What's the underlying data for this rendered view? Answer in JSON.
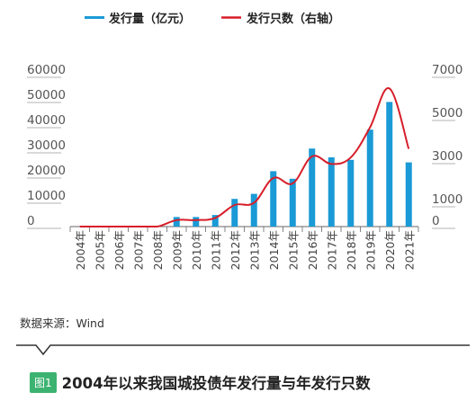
{
  "chart_data": {
    "type": "bar",
    "categories": [
      "2004年",
      "2005年",
      "2006年",
      "2007年",
      "2008年",
      "2009年",
      "2010年",
      "2011年",
      "2012年",
      "2013年",
      "2014年",
      "2015年",
      "2016年",
      "2017年",
      "2018年",
      "2019年",
      "2020年",
      "2021年"
    ],
    "series": [
      {
        "name": "发行量（亿元）",
        "type": "bar",
        "axis": "left",
        "color": "#1a9ad6",
        "values": [
          0,
          0,
          0,
          0,
          0,
          3800,
          3800,
          4600,
          11000,
          13000,
          22000,
          19000,
          31000,
          27500,
          26500,
          38500,
          49500,
          25500
        ]
      },
      {
        "name": "发行只数（右轴）",
        "type": "line",
        "axis": "right",
        "color": "#d71e2a",
        "values": [
          0,
          0,
          0,
          0,
          0,
          300,
          300,
          400,
          1000,
          1100,
          2250,
          2000,
          3250,
          2900,
          3200,
          4600,
          6400,
          3600
        ]
      }
    ],
    "left_axis": {
      "ylim": [
        0,
        60000
      ],
      "ticks": [
        "0",
        "10000",
        "20000",
        "30000",
        "40000",
        "50000",
        "60000"
      ]
    },
    "right_axis": {
      "ylim": [
        0,
        7000
      ],
      "ticks": [
        "0",
        "1000",
        "3000",
        "5000",
        "7000"
      ]
    },
    "legend_position": "top"
  },
  "source_text": "数据来源：Wind",
  "figure_label": "图1",
  "caption": "2004年以来我国城投债年发行量与年发行只数"
}
